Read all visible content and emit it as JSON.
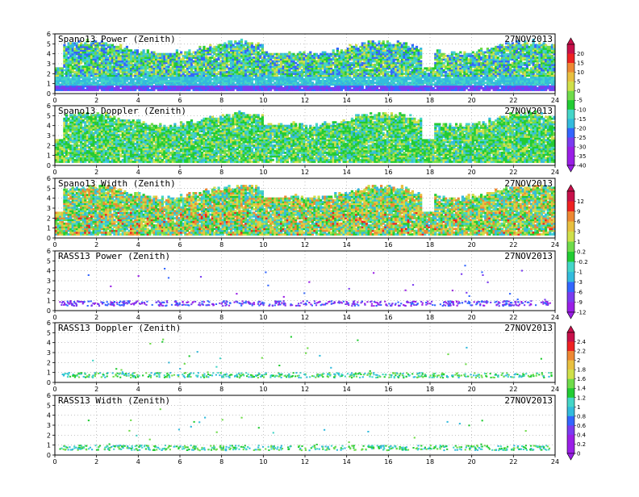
{
  "date": "27NOV2013",
  "colors": {
    "magenta": "#ff66cc",
    "purple": "#9a1fe6",
    "violet": "#7a3cf0",
    "blue": "#3366ff",
    "lightblue": "#33bbdd",
    "cyan": "#44d6c8",
    "green": "#22cc33",
    "lightgreen": "#6fdc4a",
    "yellow": "#cfe04a",
    "gold": "#e8c040",
    "orange": "#ee8833",
    "red": "#ee2222",
    "crimson": "#c8104a"
  },
  "chart_data": [
    {
      "type": "heatmap",
      "title": "Spano13 Power (Zenith)",
      "date": "27NOV2013",
      "x": {
        "range": [
          0,
          24
        ],
        "ticks": [
          0,
          2,
          4,
          6,
          8,
          10,
          12,
          14,
          16,
          18,
          20,
          22,
          24
        ]
      },
      "y": {
        "range": [
          0,
          6
        ],
        "ticks": [
          0,
          1,
          2,
          3,
          4,
          5,
          6
        ]
      },
      "colorbar": {
        "labels": [
          "20",
          "15",
          "10",
          "5",
          "0",
          "-5",
          "-10",
          "-15",
          "-20",
          "-25",
          "-30",
          "-35",
          "-40"
        ]
      }
    },
    {
      "type": "heatmap",
      "title": "Spano13 Doppler (Zenith)",
      "date": "27NOV2013",
      "x": {
        "range": [
          0,
          24
        ],
        "ticks": [
          0,
          2,
          4,
          6,
          8,
          10,
          12,
          14,
          16,
          18,
          20,
          22,
          24
        ]
      },
      "y": {
        "range": [
          0,
          6
        ],
        "ticks": [
          0,
          1,
          2,
          3,
          4,
          5,
          6
        ]
      }
    },
    {
      "type": "heatmap",
      "title": "Spano13 Width (Zenith)",
      "date": "27NOV2013",
      "x": {
        "range": [
          0,
          24
        ],
        "ticks": [
          0,
          2,
          4,
          6,
          8,
          10,
          12,
          14,
          16,
          18,
          20,
          22,
          24
        ]
      },
      "y": {
        "range": [
          0,
          6
        ],
        "ticks": [
          0,
          1,
          2,
          3,
          4,
          5,
          6
        ]
      },
      "colorbar": {
        "labels": [
          "12",
          "9",
          "6",
          "3",
          "1",
          "0.2",
          "-0.2",
          "-1",
          "-3",
          "-6",
          "-9",
          "-12"
        ]
      }
    },
    {
      "type": "heatmap",
      "title": "RASS13 Power (Zenith)",
      "date": "27NOV2013",
      "x": {
        "range": [
          0,
          24
        ],
        "ticks": [
          0,
          2,
          4,
          6,
          8,
          10,
          12,
          14,
          16,
          18,
          20,
          22,
          24
        ]
      },
      "y": {
        "range": [
          0,
          6
        ],
        "ticks": [
          0,
          1,
          2,
          3,
          4,
          5,
          6
        ]
      }
    },
    {
      "type": "heatmap",
      "title": "RASS13 Doppler (Zenith)",
      "date": "27NOV2013",
      "x": {
        "range": [
          0,
          24
        ],
        "ticks": [
          0,
          2,
          4,
          6,
          8,
          10,
          12,
          14,
          16,
          18,
          20,
          22,
          24
        ]
      },
      "y": {
        "range": [
          0,
          6
        ],
        "ticks": [
          0,
          1,
          2,
          3,
          4,
          5,
          6
        ]
      },
      "colorbar": {
        "labels": [
          "2.4",
          "2.2",
          "2",
          "1.8",
          "1.6",
          "1.4",
          "1.2",
          "1",
          "0.8",
          "0.6",
          "0.4",
          "0.2",
          "0"
        ]
      }
    },
    {
      "type": "heatmap",
      "title": "RASS13 Width (Zenith)",
      "date": "27NOV2013",
      "x": {
        "range": [
          0,
          24
        ],
        "ticks": [
          0,
          2,
          4,
          6,
          8,
          10,
          12,
          14,
          16,
          18,
          20,
          22,
          24
        ]
      },
      "y": {
        "range": [
          0,
          6
        ],
        "ticks": [
          0,
          1,
          2,
          3,
          4,
          5,
          6
        ]
      }
    }
  ]
}
